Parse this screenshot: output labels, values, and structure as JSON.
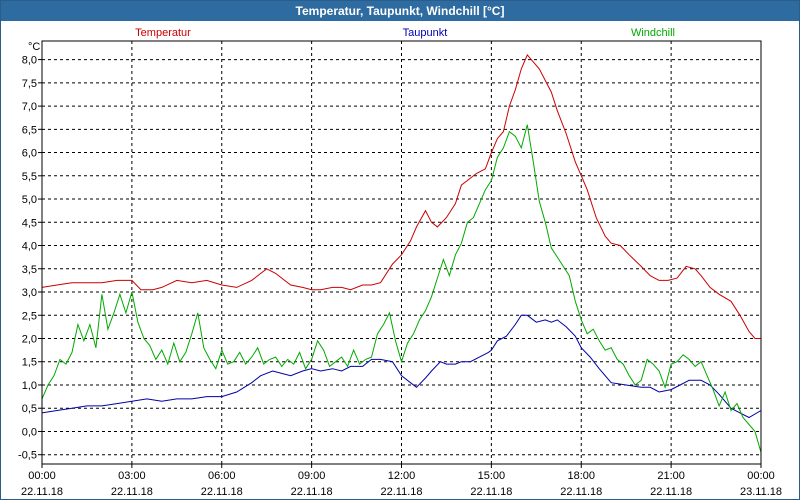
{
  "window": {
    "title": "Temperatur, Taupunkt, Windchill [°C]"
  },
  "chart_data": {
    "type": "line",
    "title": "Temperatur, Taupunkt, Windchill [°C]",
    "ylabel": "°C",
    "xlabel": "",
    "grid": true,
    "ylim": [
      -0.7,
      8.4
    ],
    "xlim": [
      0,
      24
    ],
    "yticks": [
      "8,0",
      "7,5",
      "7,0",
      "6,5",
      "6,0",
      "5,5",
      "5,0",
      "4,5",
      "4,0",
      "3,5",
      "3,0",
      "2,5",
      "2,0",
      "1,5",
      "1,0",
      "0,5",
      "0,0",
      "-0,5"
    ],
    "ytick_values": [
      8,
      7.5,
      7,
      6.5,
      6,
      5.5,
      5,
      4.5,
      4,
      3.5,
      3,
      2.5,
      2,
      1.5,
      1,
      0.5,
      0,
      -0.5
    ],
    "xticks": [
      {
        "x": 0,
        "time": "00:00",
        "date": "22.11.18"
      },
      {
        "x": 3,
        "time": "03:00",
        "date": "22.11.18"
      },
      {
        "x": 6,
        "time": "06:00",
        "date": "22.11.18"
      },
      {
        "x": 9,
        "time": "09:00",
        "date": "22.11.18"
      },
      {
        "x": 12,
        "time": "12:00",
        "date": "22.11.18"
      },
      {
        "x": 15,
        "time": "15:00",
        "date": "22.11.18"
      },
      {
        "x": 18,
        "time": "18:00",
        "date": "22.11.18"
      },
      {
        "x": 21,
        "time": "21:00",
        "date": "22.11.18"
      },
      {
        "x": 24,
        "time": "00:00",
        "date": "23.11.18"
      }
    ],
    "series": [
      {
        "name": "Temperatur",
        "color": "#cc0000",
        "x": [
          0,
          0.5,
          1,
          1.5,
          2,
          2.5,
          3,
          3.3,
          3.7,
          4,
          4.5,
          5,
          5.5,
          6,
          6.5,
          7,
          7.3,
          7.5,
          7.8,
          8,
          8.3,
          8.7,
          9,
          9.3,
          9.7,
          10,
          10.3,
          10.7,
          11,
          11.3,
          11.7,
          12,
          12.3,
          12.5,
          12.8,
          13,
          13.2,
          13.5,
          13.8,
          14,
          14.2,
          14.5,
          14.8,
          15,
          15.2,
          15.4,
          15.6,
          15.8,
          16,
          16.2,
          16.4,
          16.6,
          16.8,
          17,
          17.2,
          17.5,
          17.8,
          18,
          18.2,
          18.5,
          18.8,
          19,
          19.3,
          19.6,
          20,
          20.3,
          20.6,
          20.9,
          21.2,
          21.5,
          21.8,
          22,
          22.3,
          22.6,
          23,
          23.3,
          23.6,
          23.8,
          24
        ],
        "values": [
          3.1,
          3.15,
          3.2,
          3.2,
          3.2,
          3.25,
          3.25,
          3.05,
          3.05,
          3.1,
          3.25,
          3.2,
          3.25,
          3.15,
          3.1,
          3.25,
          3.4,
          3.5,
          3.4,
          3.3,
          3.15,
          3.1,
          3.05,
          3.05,
          3.1,
          3.1,
          3.05,
          3.15,
          3.15,
          3.2,
          3.6,
          3.8,
          4.1,
          4.4,
          4.75,
          4.5,
          4.4,
          4.6,
          4.9,
          5.3,
          5.4,
          5.55,
          5.65,
          6.0,
          6.3,
          6.45,
          7.0,
          7.35,
          7.8,
          8.1,
          7.95,
          7.8,
          7.55,
          7.3,
          6.9,
          6.4,
          5.8,
          5.5,
          5.2,
          4.6,
          4.2,
          4.05,
          4.0,
          3.8,
          3.55,
          3.35,
          3.25,
          3.25,
          3.3,
          3.55,
          3.5,
          3.35,
          3.1,
          2.95,
          2.8,
          2.5,
          2.15,
          2.0,
          2.0
        ]
      },
      {
        "name": "Taupunkt",
        "color": "#0000aa",
        "x": [
          0,
          0.5,
          1,
          1.5,
          2,
          2.5,
          3,
          3.5,
          4,
          4.5,
          5,
          5.5,
          6,
          6.5,
          7,
          7.3,
          7.7,
          8,
          8.3,
          8.7,
          9,
          9.3,
          9.7,
          10,
          10.3,
          10.7,
          11,
          11.3,
          11.7,
          12,
          12.3,
          12.5,
          12.8,
          13,
          13.3,
          13.5,
          13.8,
          14,
          14.3,
          14.6,
          14.9,
          15,
          15.2,
          15.5,
          15.8,
          16,
          16.2,
          16.5,
          16.8,
          17,
          17.2,
          17.5,
          17.8,
          18,
          18.3,
          18.6,
          19,
          19.5,
          20,
          20.3,
          20.6,
          21,
          21.3,
          21.6,
          22,
          22.3,
          22.6,
          23,
          23.3,
          23.6,
          24
        ],
        "values": [
          0.4,
          0.45,
          0.5,
          0.55,
          0.55,
          0.6,
          0.65,
          0.7,
          0.65,
          0.7,
          0.7,
          0.75,
          0.75,
          0.85,
          1.05,
          1.2,
          1.3,
          1.25,
          1.2,
          1.3,
          1.35,
          1.3,
          1.35,
          1.3,
          1.4,
          1.4,
          1.55,
          1.55,
          1.5,
          1.2,
          1.05,
          0.95,
          1.15,
          1.3,
          1.5,
          1.45,
          1.45,
          1.5,
          1.5,
          1.6,
          1.7,
          1.75,
          1.95,
          2.05,
          2.3,
          2.5,
          2.5,
          2.35,
          2.4,
          2.35,
          2.4,
          2.25,
          2.05,
          1.8,
          1.6,
          1.35,
          1.05,
          1.0,
          0.95,
          0.95,
          0.85,
          0.9,
          1.0,
          1.1,
          1.1,
          1.0,
          0.8,
          0.5,
          0.4,
          0.3,
          0.45
        ]
      },
      {
        "name": "Windchill",
        "color": "#00aa00",
        "x": [
          0,
          0.2,
          0.4,
          0.6,
          0.8,
          1,
          1.2,
          1.4,
          1.6,
          1.8,
          2,
          2.2,
          2.4,
          2.6,
          2.8,
          3,
          3.2,
          3.4,
          3.6,
          3.8,
          4,
          4.2,
          4.4,
          4.6,
          4.8,
          5,
          5.2,
          5.4,
          5.6,
          5.8,
          6,
          6.2,
          6.4,
          6.6,
          6.8,
          7,
          7.2,
          7.4,
          7.6,
          7.8,
          8,
          8.2,
          8.4,
          8.6,
          8.8,
          9,
          9.2,
          9.4,
          9.6,
          9.8,
          10,
          10.2,
          10.4,
          10.6,
          10.8,
          11,
          11.2,
          11.4,
          11.6,
          11.8,
          12,
          12.2,
          12.4,
          12.6,
          12.8,
          13,
          13.2,
          13.4,
          13.6,
          13.8,
          14,
          14.2,
          14.4,
          14.6,
          14.8,
          15,
          15.2,
          15.4,
          15.6,
          15.8,
          16,
          16.2,
          16.4,
          16.6,
          16.8,
          17,
          17.2,
          17.4,
          17.6,
          17.8,
          18,
          18.2,
          18.4,
          18.6,
          18.8,
          19,
          19.2,
          19.4,
          19.6,
          19.8,
          20,
          20.2,
          20.4,
          20.6,
          20.8,
          21,
          21.2,
          21.4,
          21.6,
          21.8,
          22,
          22.2,
          22.4,
          22.6,
          22.8,
          23,
          23.2,
          23.4,
          23.6,
          23.8,
          24
        ],
        "values": [
          0.7,
          1.0,
          1.2,
          1.55,
          1.45,
          1.7,
          2.3,
          1.95,
          2.3,
          1.8,
          2.95,
          2.2,
          2.55,
          2.95,
          2.55,
          3.0,
          2.35,
          2.0,
          1.85,
          1.55,
          1.75,
          1.45,
          1.9,
          1.5,
          1.7,
          2.1,
          2.55,
          1.8,
          1.55,
          1.35,
          1.75,
          1.45,
          1.5,
          1.7,
          1.45,
          1.6,
          1.8,
          1.45,
          1.55,
          1.6,
          1.4,
          1.55,
          1.45,
          1.7,
          1.35,
          1.55,
          1.95,
          1.75,
          1.4,
          1.5,
          1.6,
          1.4,
          1.75,
          1.45,
          1.55,
          1.6,
          2.1,
          2.3,
          2.55,
          1.95,
          1.5,
          1.9,
          2.1,
          2.4,
          2.6,
          2.9,
          3.3,
          3.7,
          3.35,
          3.8,
          4.05,
          4.5,
          4.6,
          4.9,
          5.2,
          5.4,
          5.9,
          6.1,
          6.45,
          6.35,
          6.1,
          6.6,
          5.8,
          4.95,
          4.5,
          3.95,
          3.75,
          3.55,
          3.35,
          2.8,
          2.4,
          2.1,
          2.2,
          1.95,
          1.75,
          1.8,
          1.55,
          1.45,
          1.2,
          1.0,
          1.1,
          1.55,
          1.45,
          1.3,
          0.95,
          1.45,
          1.5,
          1.65,
          1.55,
          1.4,
          1.5,
          1.2,
          0.9,
          0.55,
          0.85,
          0.45,
          0.6,
          0.3,
          0.15,
          0.0,
          -0.45
        ]
      }
    ]
  }
}
